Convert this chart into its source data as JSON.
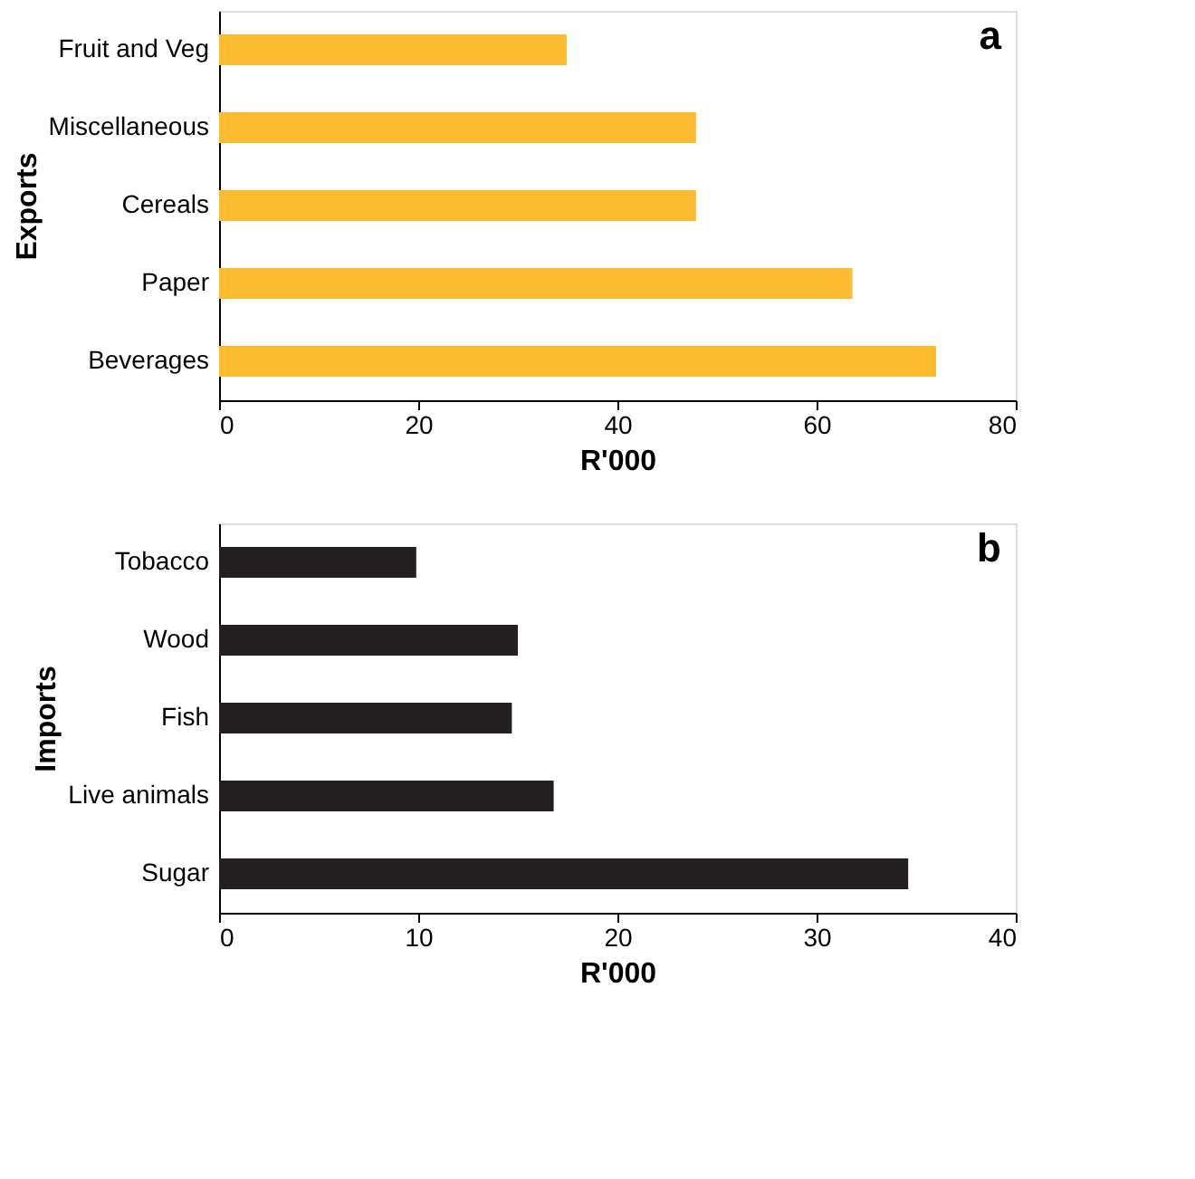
{
  "chart_data": [
    {
      "type": "bar",
      "orientation": "horizontal",
      "categories": [
        "Fruit and Veg",
        "Miscellaneous",
        "Cereals",
        "Paper",
        "Beverages"
      ],
      "values": [
        34.9,
        47.9,
        47.9,
        63.6,
        72
      ],
      "color": "#fdbb2f",
      "xlim": [
        0,
        80
      ],
      "xticks": [
        0,
        20,
        40,
        60,
        80
      ],
      "xlabel": "R'000",
      "ylabel": "Exports",
      "annotations": [
        "a"
      ],
      "grid": false
    },
    {
      "type": "bar",
      "orientation": "horizontal",
      "categories": [
        "Tobacco",
        "Wood",
        "Fish",
        "Live animals",
        "Sugar"
      ],
      "values": [
        9.9,
        15.0,
        14.7,
        16.8,
        34.6
      ],
      "color": "#231f20",
      "xlim": [
        0,
        40
      ],
      "xticks": [
        0,
        10,
        20,
        30,
        40
      ],
      "xlabel": "R'000",
      "ylabel": "Imports",
      "annotations": [
        "b"
      ],
      "grid": false
    }
  ]
}
